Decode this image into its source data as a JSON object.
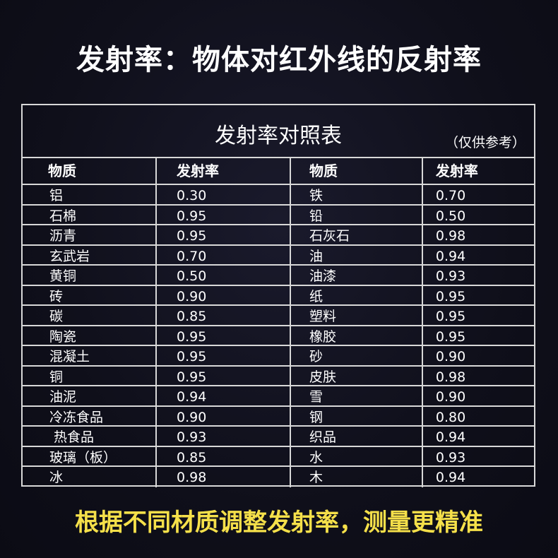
{
  "title": "发射率：物体对红外线的反射率",
  "footer": "根据不同材质调整发射率，测量更精准",
  "colors": {
    "background": "#0f0f1a",
    "text": "#ffffff",
    "footer": "#f5e04a",
    "grid": "#d8d8d8"
  },
  "table": {
    "title": "发射率对照表",
    "note": "（仅供参考）",
    "headers": [
      "物质",
      "发射率",
      "物质",
      "发射率"
    ],
    "rows": [
      [
        "铝",
        "0.30",
        "铁",
        "0.70"
      ],
      [
        "石棉",
        "0.95",
        "铅",
        "0.50"
      ],
      [
        "沥青",
        "0.95",
        "石灰石",
        "0.98"
      ],
      [
        "玄武岩",
        "0.70",
        "油",
        "0.94"
      ],
      [
        "黄铜",
        "0.50",
        "油漆",
        "0.93"
      ],
      [
        "砖",
        "0.90",
        "纸",
        "0.95"
      ],
      [
        "碳",
        "0.85",
        "塑料",
        "0.95"
      ],
      [
        "陶瓷",
        "0.95",
        "橡胶",
        "0.95"
      ],
      [
        "混凝土",
        "0.95",
        "砂",
        "0.90"
      ],
      [
        "铜",
        "0.95",
        "皮肤",
        "0.98"
      ],
      [
        "油泥",
        "0.94",
        "雪",
        "0.90"
      ],
      [
        "冷冻食品",
        "0.90",
        "钢",
        "0.80"
      ],
      [
        " 热食品",
        "0.93",
        "织品",
        "0.94"
      ],
      [
        "玻璃（板）",
        "0.85",
        "水",
        "0.93"
      ],
      [
        "冰",
        "0.98",
        "木",
        "0.94"
      ]
    ]
  }
}
